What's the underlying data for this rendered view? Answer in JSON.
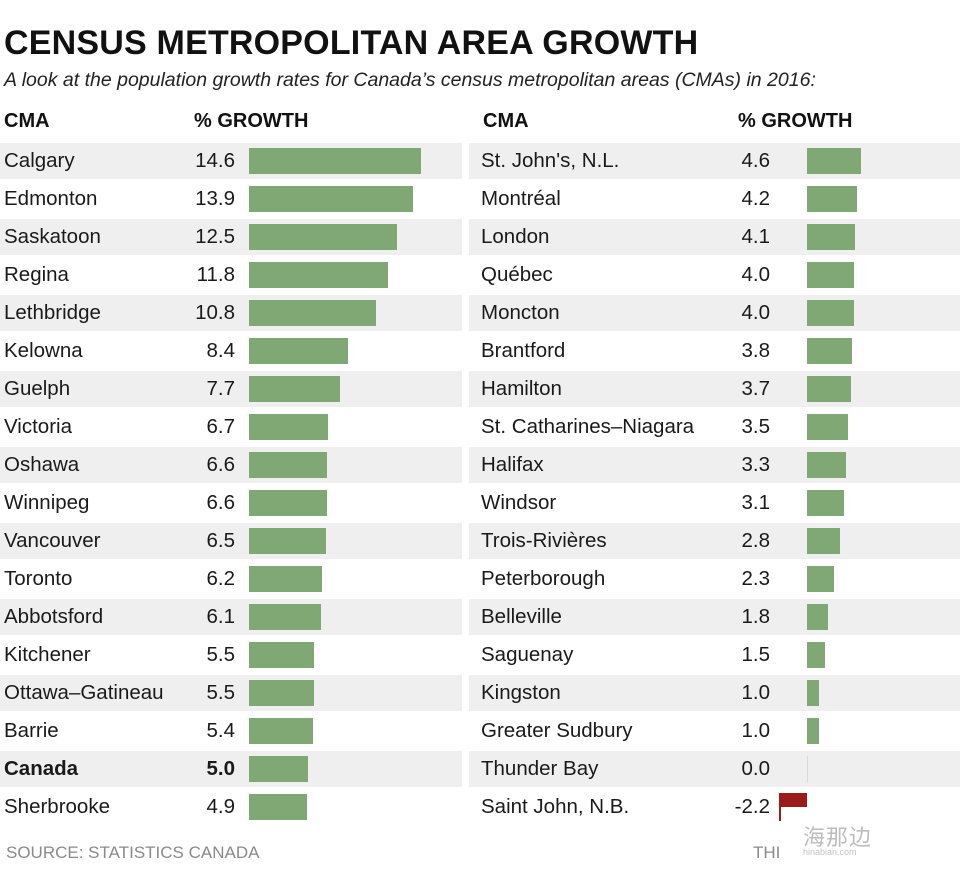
{
  "title": "CENSUS METROPOLITAN AREA GROWTH",
  "subtitle": "A look at the population growth rates for Canada’s census metropolitan areas (CMAs) in 2016:",
  "headers": {
    "left_cma": "CMA",
    "left_growth": "% GROWTH",
    "right_cma": "CMA",
    "right_growth": "% GROWTH"
  },
  "footer": {
    "source": "SOURCE: STATISTICS CANADA",
    "credit": "THI"
  },
  "watermark": {
    "text": "海那边",
    "sub": "hinabian.com"
  },
  "colors": {
    "bar": "#80a875",
    "negative": "#9b1a1a",
    "row_shade": "#efefef"
  },
  "chart_data": {
    "type": "bar",
    "title": "CENSUS METROPOLITAN AREA GROWTH",
    "xlabel": "",
    "ylabel": "% GROWTH",
    "value_unit": "%",
    "columns": [
      {
        "rows": [
          {
            "name": "Calgary",
            "value": 14.6,
            "label": "14.6"
          },
          {
            "name": "Edmonton",
            "value": 13.9,
            "label": "13.9"
          },
          {
            "name": "Saskatoon",
            "value": 12.5,
            "label": "12.5"
          },
          {
            "name": "Regina",
            "value": 11.8,
            "label": "11.8"
          },
          {
            "name": "Lethbridge",
            "value": 10.8,
            "label": "10.8"
          },
          {
            "name": "Kelowna",
            "value": 8.4,
            "label": "8.4"
          },
          {
            "name": "Guelph",
            "value": 7.7,
            "label": "7.7"
          },
          {
            "name": "Victoria",
            "value": 6.7,
            "label": "6.7"
          },
          {
            "name": "Oshawa",
            "value": 6.6,
            "label": "6.6"
          },
          {
            "name": "Winnipeg",
            "value": 6.6,
            "label": "6.6"
          },
          {
            "name": "Vancouver",
            "value": 6.5,
            "label": "6.5"
          },
          {
            "name": "Toronto",
            "value": 6.2,
            "label": "6.2"
          },
          {
            "name": "Abbotsford",
            "value": 6.1,
            "label": "6.1"
          },
          {
            "name": "Kitchener",
            "value": 5.5,
            "label": "5.5"
          },
          {
            "name": "Ottawa–Gatineau",
            "value": 5.5,
            "label": "5.5"
          },
          {
            "name": "Barrie",
            "value": 5.4,
            "label": "5.4"
          },
          {
            "name": "Canada",
            "value": 5.0,
            "label": "5.0",
            "highlight": true
          },
          {
            "name": "Sherbrooke",
            "value": 4.9,
            "label": "4.9"
          }
        ]
      },
      {
        "rows": [
          {
            "name": "St. John's, N.L.",
            "value": 4.6,
            "label": "4.6"
          },
          {
            "name": "Montréal",
            "value": 4.2,
            "label": "4.2"
          },
          {
            "name": "London",
            "value": 4.1,
            "label": "4.1"
          },
          {
            "name": "Québec",
            "value": 4.0,
            "label": "4.0"
          },
          {
            "name": "Moncton",
            "value": 4.0,
            "label": "4.0"
          },
          {
            "name": "Brantford",
            "value": 3.8,
            "label": "3.8"
          },
          {
            "name": "Hamilton",
            "value": 3.7,
            "label": "3.7"
          },
          {
            "name": "St. Catharines–Niagara",
            "value": 3.5,
            "label": "3.5"
          },
          {
            "name": "Halifax",
            "value": 3.3,
            "label": "3.3"
          },
          {
            "name": "Windsor",
            "value": 3.1,
            "label": "3.1"
          },
          {
            "name": "Trois-Rivières",
            "value": 2.8,
            "label": "2.8"
          },
          {
            "name": "Peterborough",
            "value": 2.3,
            "label": "2.3"
          },
          {
            "name": "Belleville",
            "value": 1.8,
            "label": "1.8"
          },
          {
            "name": "Saguenay",
            "value": 1.5,
            "label": "1.5"
          },
          {
            "name": "Kingston",
            "value": 1.0,
            "label": "1.0"
          },
          {
            "name": "Greater Sudbury",
            "value": 1.0,
            "label": "1.0"
          },
          {
            "name": "Thunder Bay",
            "value": 0.0,
            "label": "0.0"
          },
          {
            "name": "Saint John, N.B.",
            "value": -2.2,
            "label": "-2.2"
          }
        ]
      }
    ]
  }
}
